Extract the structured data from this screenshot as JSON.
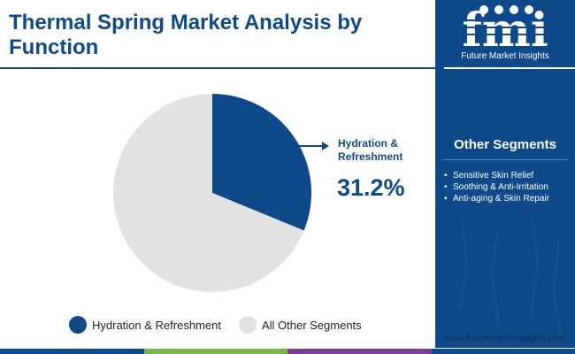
{
  "title": "Thermal Spring Market Analysis by Function",
  "brand": {
    "name": "fmi",
    "tagline": "Future Market Insights",
    "website": "www.futuremarketinsights.com"
  },
  "side_panel": {
    "heading": "Other Segments",
    "items": [
      "Sensitive Skin Relief",
      "Soothing & Anti-Irritation",
      "Anti-aging & Skin Repair"
    ]
  },
  "colors": {
    "primary": "#0e4a8a",
    "other": "#e2e2e2",
    "bottom_bar": [
      "#0e4a8a",
      "#7ab648",
      "#7b3f98",
      "#0e4a8a"
    ]
  },
  "chart_data": {
    "type": "pie",
    "slices": [
      {
        "label": "Hydration & Refreshment",
        "value": 31.2,
        "color": "#0e4a8a"
      },
      {
        "label": "All Other Segments",
        "value": 68.8,
        "color": "#e2e2e2"
      }
    ],
    "callout": {
      "label": "Hydration & Refreshment",
      "value_text": "31.2%"
    },
    "legend": {
      "position": "bottom"
    }
  }
}
